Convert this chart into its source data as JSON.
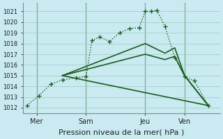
{
  "background_color": "#c8eaf0",
  "grid_color": "#99ccbb",
  "line_color": "#1a5c1a",
  "ylabel_values": [
    1012,
    1013,
    1014,
    1015,
    1016,
    1017,
    1018,
    1019,
    1020,
    1021
  ],
  "ylim": [
    1011.5,
    1021.8
  ],
  "xlim": [
    -0.2,
    9.8
  ],
  "x_tick_labels": [
    "Mer",
    "Sam",
    "Jeu",
    "Ven"
  ],
  "x_tick_positions": [
    0.5,
    3.0,
    6.0,
    8.0
  ],
  "xlabel": "Pression niveau de la mer( hPa )",
  "xlabel_fontsize": 8,
  "ytick_fontsize": 6,
  "xtick_fontsize": 7,
  "series": [
    {
      "x": [
        0.0,
        0.6,
        1.2,
        1.8,
        2.5,
        3.0,
        3.3,
        3.7,
        4.2,
        4.7,
        5.2,
        5.7,
        6.0,
        6.3,
        6.6,
        7.0,
        7.5,
        8.0,
        8.5,
        9.2
      ],
      "y": [
        1012.2,
        1013.1,
        1014.2,
        1014.6,
        1014.8,
        1014.9,
        1018.3,
        1018.6,
        1018.2,
        1019.0,
        1019.4,
        1019.5,
        1021.0,
        1021.0,
        1021.1,
        1019.6,
        1016.7,
        1014.9,
        1014.5,
        1012.2
      ],
      "linestyle": "dotted",
      "marker": "+",
      "markersize": 4,
      "linewidth": 1.0
    },
    {
      "x": [
        1.8,
        6.0,
        7.0,
        7.5,
        8.0,
        9.2
      ],
      "y": [
        1015.0,
        1018.0,
        1017.1,
        1017.6,
        1015.0,
        1012.2
      ],
      "linestyle": "solid",
      "marker": null,
      "markersize": 0,
      "linewidth": 1.2
    },
    {
      "x": [
        1.8,
        6.0,
        7.0,
        7.5,
        8.0,
        9.2
      ],
      "y": [
        1015.0,
        1017.0,
        1016.5,
        1016.8,
        1015.0,
        1012.2
      ],
      "linestyle": "solid",
      "marker": null,
      "markersize": 0,
      "linewidth": 1.2
    },
    {
      "x": [
        1.8,
        9.2
      ],
      "y": [
        1015.0,
        1012.2
      ],
      "linestyle": "solid",
      "marker": null,
      "markersize": 0,
      "linewidth": 1.2
    }
  ],
  "vlines": [
    0.5,
    3.0,
    6.0,
    8.0
  ],
  "vline_color": "#336633",
  "vline_lw": 0.8
}
